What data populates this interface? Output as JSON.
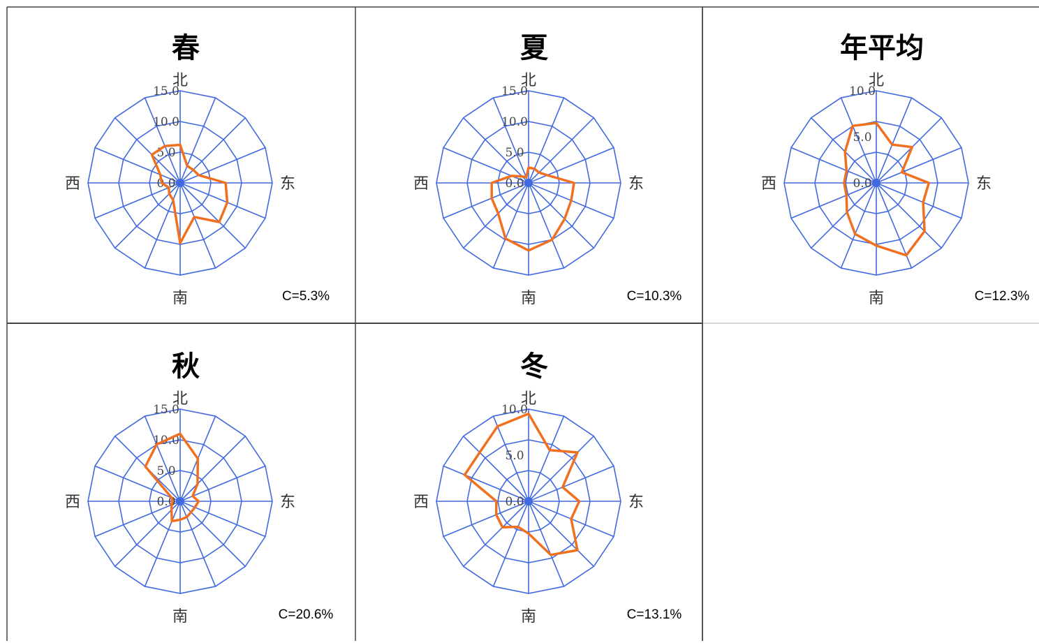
{
  "chart_data": [
    {
      "type": "radar",
      "title": "春",
      "directions": [
        "北",
        "东",
        "南",
        "西"
      ],
      "sectors": 16,
      "r_ticks": [
        "0.0",
        "5.0",
        "10.0",
        "15.0"
      ],
      "rmax": 15,
      "values": [
        6.2,
        3.0,
        3.0,
        3.3,
        7.4,
        8.3,
        9.0,
        6.0,
        9.8,
        3.0,
        2.5,
        2.0,
        3.0,
        3.5,
        6.5,
        6.5
      ],
      "calm": "C=5.3%"
    },
    {
      "type": "radar",
      "title": "夏",
      "directions": [
        "北",
        "东",
        "南",
        "西"
      ],
      "sectors": 16,
      "r_ticks": [
        "0.0",
        "5.0",
        "10.0",
        "15.0"
      ],
      "rmax": 15,
      "values": [
        2.5,
        2.5,
        2.4,
        3.3,
        7.4,
        7.5,
        8.3,
        10.0,
        11.0,
        9.8,
        7.0,
        6.5,
        6.0,
        3.0,
        1.5,
        1.0
      ],
      "calm": "C=10.3%"
    },
    {
      "type": "radar",
      "title": "年平均",
      "directions": [
        "北",
        "东",
        "南",
        "西"
      ],
      "sectors": 16,
      "r_ticks": [
        "0.0",
        "5.0",
        "10.0"
      ],
      "rmax": 10,
      "values": [
        6.5,
        4.5,
        5.5,
        3.0,
        5.7,
        5.5,
        7.4,
        8.5,
        6.8,
        6.0,
        4.5,
        3.5,
        3.5,
        3.5,
        4.8,
        6.7
      ],
      "calm": "C=12.3%"
    },
    {
      "type": "radar",
      "title": "秋",
      "directions": [
        "北",
        "东",
        "南",
        "西"
      ],
      "sectors": 16,
      "r_ticks": [
        "0.0",
        "5.0",
        "10.0",
        "15.0"
      ],
      "rmax": 15,
      "values": [
        11.0,
        7.5,
        4.0,
        2.2,
        3.0,
        2.6,
        2.5,
        2.8,
        3.0,
        3.5,
        2.0,
        1.5,
        1.2,
        1.5,
        8.0,
        10.0
      ],
      "calm": "C=20.6%"
    },
    {
      "type": "radar",
      "title": "冬",
      "directions": [
        "北",
        "东",
        "南",
        "西"
      ],
      "sectors": 16,
      "r_ticks": [
        "0.0",
        "5.0",
        "10.0"
      ],
      "rmax": 10,
      "values": [
        9.5,
        6.0,
        7.5,
        4.0,
        5.5,
        5.0,
        7.5,
        6.3,
        3.5,
        3.0,
        4.0,
        3.8,
        3.5,
        7.5,
        7.5,
        8.8
      ],
      "calm": "C=13.1%"
    }
  ]
}
